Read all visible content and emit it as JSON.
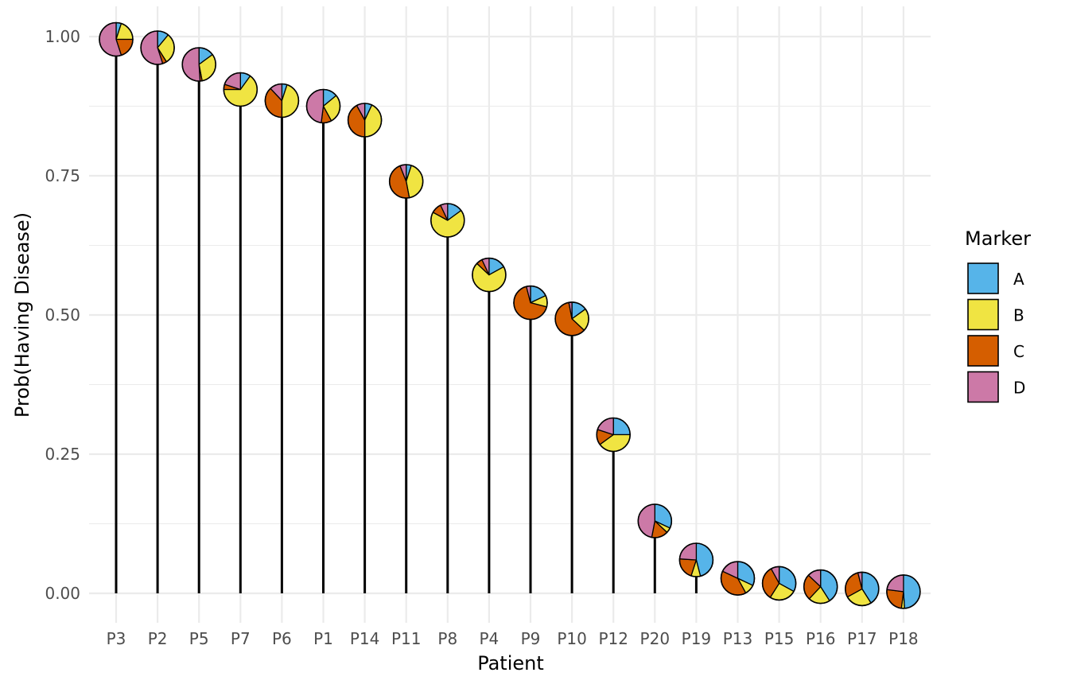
{
  "chart_data": {
    "type": "lollipop-pie",
    "xlabel": "Patient",
    "ylabel": "Prob(Having Disease)",
    "ylim": [
      -0.05,
      1.05
    ],
    "yticks": [
      0.0,
      0.25,
      0.5,
      0.75,
      1.0
    ],
    "ytick_labels": [
      "0.00",
      "0.25",
      "0.50",
      "0.75",
      "1.00"
    ],
    "grid": true,
    "legend": {
      "title": "Marker",
      "placement": "right",
      "entries": [
        {
          "label": "A",
          "color": "#56B4E9"
        },
        {
          "label": "B",
          "color": "#F0E442"
        },
        {
          "label": "C",
          "color": "#D55E00"
        },
        {
          "label": "D",
          "color": "#CC79A7"
        }
      ]
    },
    "patients": [
      {
        "label": "P3",
        "prob": 0.995,
        "markers": [
          0.05,
          0.2,
          0.2,
          0.55
        ]
      },
      {
        "label": "P2",
        "prob": 0.98,
        "markers": [
          0.11,
          0.3,
          0.04,
          0.55
        ]
      },
      {
        "label": "P5",
        "prob": 0.95,
        "markers": [
          0.15,
          0.32,
          0.02,
          0.51
        ]
      },
      {
        "label": "P7",
        "prob": 0.905,
        "markers": [
          0.1,
          0.65,
          0.05,
          0.2
        ]
      },
      {
        "label": "P6",
        "prob": 0.885,
        "markers": [
          0.05,
          0.45,
          0.38,
          0.12
        ]
      },
      {
        "label": "P1",
        "prob": 0.875,
        "markers": [
          0.14,
          0.28,
          0.1,
          0.48
        ]
      },
      {
        "label": "P14",
        "prob": 0.85,
        "markers": [
          0.07,
          0.43,
          0.42,
          0.08
        ]
      },
      {
        "label": "P11",
        "prob": 0.74,
        "markers": [
          0.05,
          0.42,
          0.47,
          0.06
        ]
      },
      {
        "label": "P8",
        "prob": 0.67,
        "markers": [
          0.15,
          0.68,
          0.1,
          0.07
        ]
      },
      {
        "label": "P4",
        "prob": 0.572,
        "markers": [
          0.17,
          0.7,
          0.06,
          0.07
        ]
      },
      {
        "label": "P9",
        "prob": 0.522,
        "markers": [
          0.18,
          0.11,
          0.67,
          0.04
        ]
      },
      {
        "label": "P10",
        "prob": 0.493,
        "markers": [
          0.15,
          0.22,
          0.6,
          0.03
        ]
      },
      {
        "label": "P12",
        "prob": 0.285,
        "markers": [
          0.25,
          0.4,
          0.15,
          0.2
        ]
      },
      {
        "label": "P20",
        "prob": 0.13,
        "markers": [
          0.32,
          0.05,
          0.16,
          0.47
        ]
      },
      {
        "label": "P19",
        "prob": 0.06,
        "markers": [
          0.46,
          0.09,
          0.21,
          0.24
        ]
      },
      {
        "label": "P13",
        "prob": 0.027,
        "markers": [
          0.32,
          0.1,
          0.4,
          0.18
        ]
      },
      {
        "label": "P15",
        "prob": 0.018,
        "markers": [
          0.33,
          0.26,
          0.33,
          0.08
        ]
      },
      {
        "label": "P16",
        "prob": 0.012,
        "markers": [
          0.41,
          0.21,
          0.25,
          0.13
        ]
      },
      {
        "label": "P17",
        "prob": 0.008,
        "markers": [
          0.41,
          0.26,
          0.29,
          0.04
        ]
      },
      {
        "label": "P18",
        "prob": 0.003,
        "markers": [
          0.49,
          0.03,
          0.25,
          0.23
        ]
      }
    ]
  }
}
